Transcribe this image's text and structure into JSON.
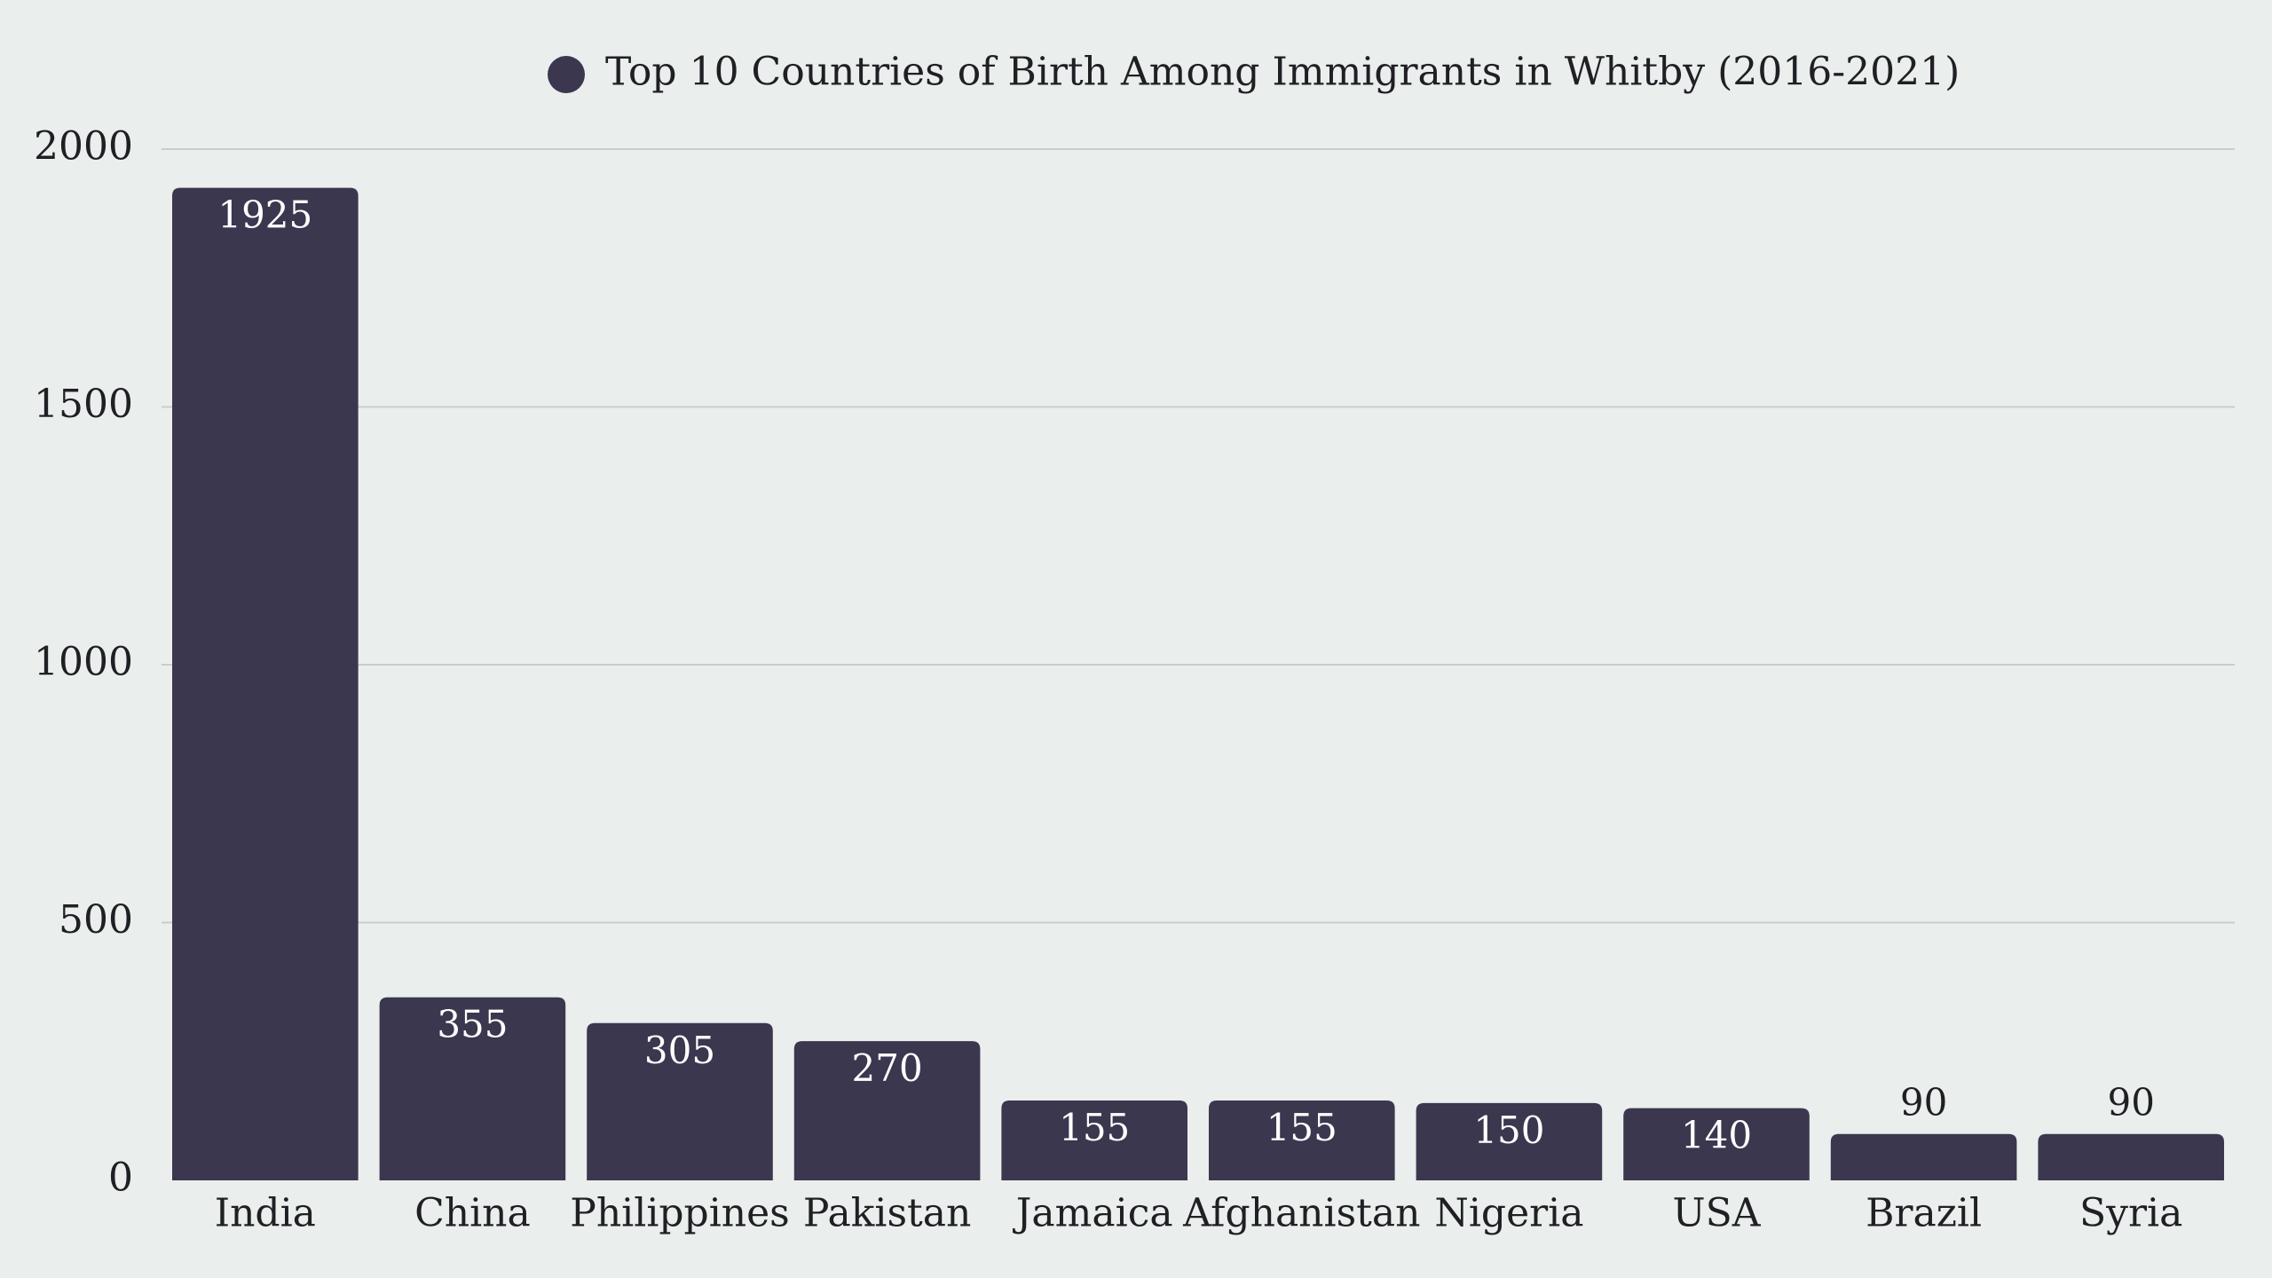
{
  "chart_data": {
    "type": "bar",
    "legend": {
      "label": "Top 10 Countries of Birth Among Immigrants in Whitby (2016-2021)",
      "placement": "top-center"
    },
    "categories": [
      "India",
      "China",
      "Philippines",
      "Pakistan",
      "Jamaica",
      "Afghanistan",
      "Nigeria",
      "USA",
      "Brazil",
      "Syria"
    ],
    "series": [
      {
        "name": "Top 10 Countries of Birth Among Immigrants in Whitby (2016-2021)",
        "values": [
          1925,
          355,
          305,
          270,
          155,
          155,
          150,
          140,
          90,
          90
        ]
      }
    ],
    "ylim": [
      0,
      2000
    ],
    "yticks": [
      0,
      500,
      1000,
      1500,
      2000
    ],
    "ytick_labels": [
      "0",
      "500",
      "1000",
      "1500",
      "2000"
    ],
    "grid": true,
    "xlabel": "",
    "ylabel": "",
    "colors": {
      "bar": "#3b374f",
      "label_inside": "#ffffff",
      "label_outside": "#1f1f24",
      "grid": "#c9cdcf",
      "background": "#eaeeed"
    }
  }
}
